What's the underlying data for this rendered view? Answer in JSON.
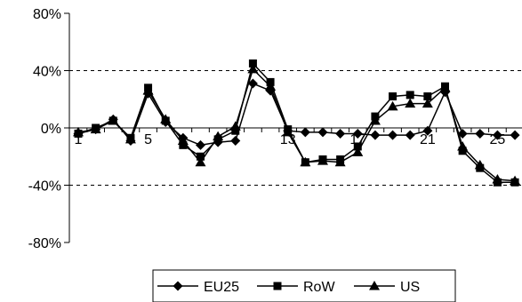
{
  "chart_data": {
    "type": "line",
    "title": "",
    "xlabel": "",
    "ylabel": "",
    "x": [
      1,
      2,
      3,
      4,
      5,
      6,
      7,
      8,
      9,
      10,
      11,
      12,
      13,
      14,
      15,
      16,
      17,
      18,
      19,
      20,
      21,
      22,
      23,
      24,
      25,
      26
    ],
    "xtick_labels": [
      "1",
      "5",
      "9",
      "13",
      "17",
      "21",
      "25"
    ],
    "xtick_values": [
      1,
      5,
      9,
      13,
      17,
      21,
      25
    ],
    "ylim": [
      -80,
      80
    ],
    "yticks": [
      -80,
      -40,
      0,
      40,
      80
    ],
    "ytick_labels": [
      "-80%",
      "-40%",
      "0%",
      "40%",
      "80%"
    ],
    "grid": "horizontal-dashed",
    "legend_position": "bottom",
    "series": [
      {
        "name": "EU25",
        "marker": "diamond",
        "color": "#000000",
        "values": [
          -4,
          -1,
          6,
          -9,
          24,
          4,
          -7,
          -12,
          -10,
          -9,
          31,
          26,
          -2,
          -3,
          -3,
          -4,
          -4,
          -5,
          -5,
          -5,
          -2,
          25,
          -4,
          -4,
          -5,
          -5
        ]
      },
      {
        "name": "RoW",
        "marker": "square",
        "color": "#000000",
        "values": [
          -4,
          0,
          5,
          -7,
          28,
          5,
          -12,
          -20,
          -8,
          -2,
          45,
          32,
          -1,
          -24,
          -22,
          -22,
          -13,
          8,
          22,
          23,
          22,
          29,
          -16,
          -28,
          -38,
          -38
        ]
      },
      {
        "name": "US",
        "marker": "triangle",
        "color": "#000000",
        "values": [
          -3,
          -1,
          5,
          -8,
          26,
          6,
          -9,
          -24,
          -6,
          1,
          41,
          29,
          -3,
          -24,
          -23,
          -24,
          -17,
          5,
          15,
          17,
          17,
          28,
          -13,
          -26,
          -36,
          -37
        ]
      }
    ]
  }
}
